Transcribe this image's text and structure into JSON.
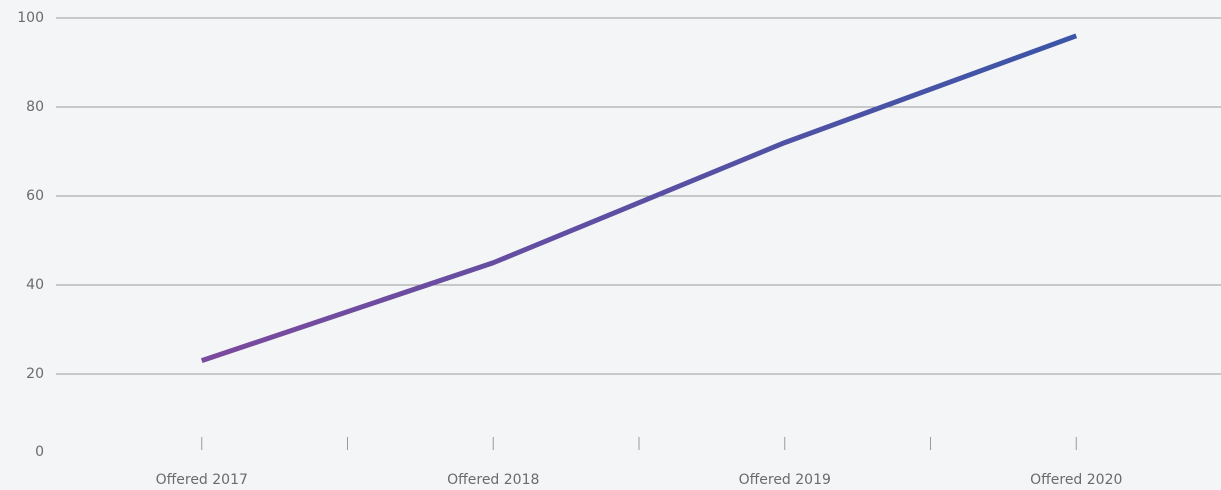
{
  "chart_data": {
    "type": "line",
    "categories": [
      "Offered 2017",
      "Offered 2018",
      "Offered 2019",
      "Offered 2020"
    ],
    "values": [
      23,
      45,
      72,
      96
    ],
    "colors": [
      "#7b4a9e",
      "#3b55a7"
    ],
    "ylim": [
      0,
      100
    ],
    "yticks": [
      0,
      20,
      40,
      60,
      80,
      100
    ],
    "grid": true
  }
}
